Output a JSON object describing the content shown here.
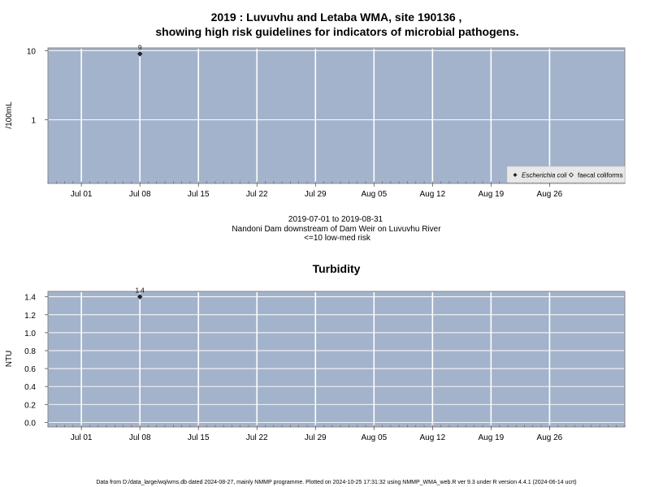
{
  "title_line1": "2019 : Luvuvhu and Letaba WMA, site 190136 ,",
  "title_line2": "showing high risk guidelines for indicators of microbial pathogens.",
  "subtitle_lines": [
    "2019-07-01 to 2019-08-31",
    "Nandoni Dam downstream of Dam Weir on Luvuvhu River",
    "<=10 low-med risk"
  ],
  "footer": "Data from D:/data_large/wq/wms.db dated 2024-08-27, mainly NMMP programme. Plotted on 2024-10-25 17:31:32 using NMMP_WMA_web.R ver 9.3 under R version 4.4.1 (2024-06-14 ucrt)",
  "colors": {
    "panel_bg": "#a3b3cb",
    "grid": "#ffffff",
    "point": "#222222",
    "legend_bg": "#e8e8e8"
  },
  "chart_data": [
    {
      "type": "scatter",
      "title": "",
      "xlabel": "",
      "ylabel": "/100mL",
      "yscale": "log",
      "xlim": [
        "2019-06-27",
        "2019-09-04"
      ],
      "ylim": [
        0.12,
        11
      ],
      "x_ticks": [
        "Jul 01",
        "Jul 08",
        "Jul 15",
        "Jul 22",
        "Jul 29",
        "Aug 05",
        "Aug 12",
        "Aug 19",
        "Aug 26"
      ],
      "x_tick_dates": [
        "2019-07-01",
        "2019-07-08",
        "2019-07-15",
        "2019-07-22",
        "2019-07-29",
        "2019-08-05",
        "2019-08-12",
        "2019-08-19",
        "2019-08-26"
      ],
      "y_ticks": [
        1,
        10
      ],
      "y_tick_labels": [
        "1",
        "10"
      ],
      "grid": true,
      "legend_position": "bottom-right",
      "series": [
        {
          "name": "Escherichia coli",
          "marker": "filled-diamond",
          "points": [
            {
              "x": "2019-07-08",
              "y": 9,
              "label": "9"
            }
          ]
        },
        {
          "name": "faecal coliforms",
          "marker": "open-diamond",
          "points": []
        }
      ]
    },
    {
      "type": "scatter",
      "title": "Turbidity",
      "xlabel": "",
      "ylabel": "NTU",
      "xlim": [
        "2019-06-27",
        "2019-09-04"
      ],
      "ylim": [
        -0.05,
        1.46
      ],
      "x_ticks": [
        "Jul 01",
        "Jul 08",
        "Jul 15",
        "Jul 22",
        "Jul 29",
        "Aug 05",
        "Aug 12",
        "Aug 19",
        "Aug 26"
      ],
      "x_tick_dates": [
        "2019-07-01",
        "2019-07-08",
        "2019-07-15",
        "2019-07-22",
        "2019-07-29",
        "2019-08-05",
        "2019-08-12",
        "2019-08-19",
        "2019-08-26"
      ],
      "y_ticks": [
        0,
        0.2,
        0.4,
        0.6,
        0.8,
        1.0,
        1.2,
        1.4
      ],
      "y_tick_labels": [
        "0.0",
        "0.2",
        "0.4",
        "0.6",
        "0.8",
        "1.0",
        "1.2",
        "1.4"
      ],
      "grid": true,
      "series": [
        {
          "marker": "filled-diamond",
          "points": [
            {
              "x": "2019-07-08",
              "y": 1.4,
              "label": "1.4"
            }
          ]
        }
      ]
    }
  ]
}
